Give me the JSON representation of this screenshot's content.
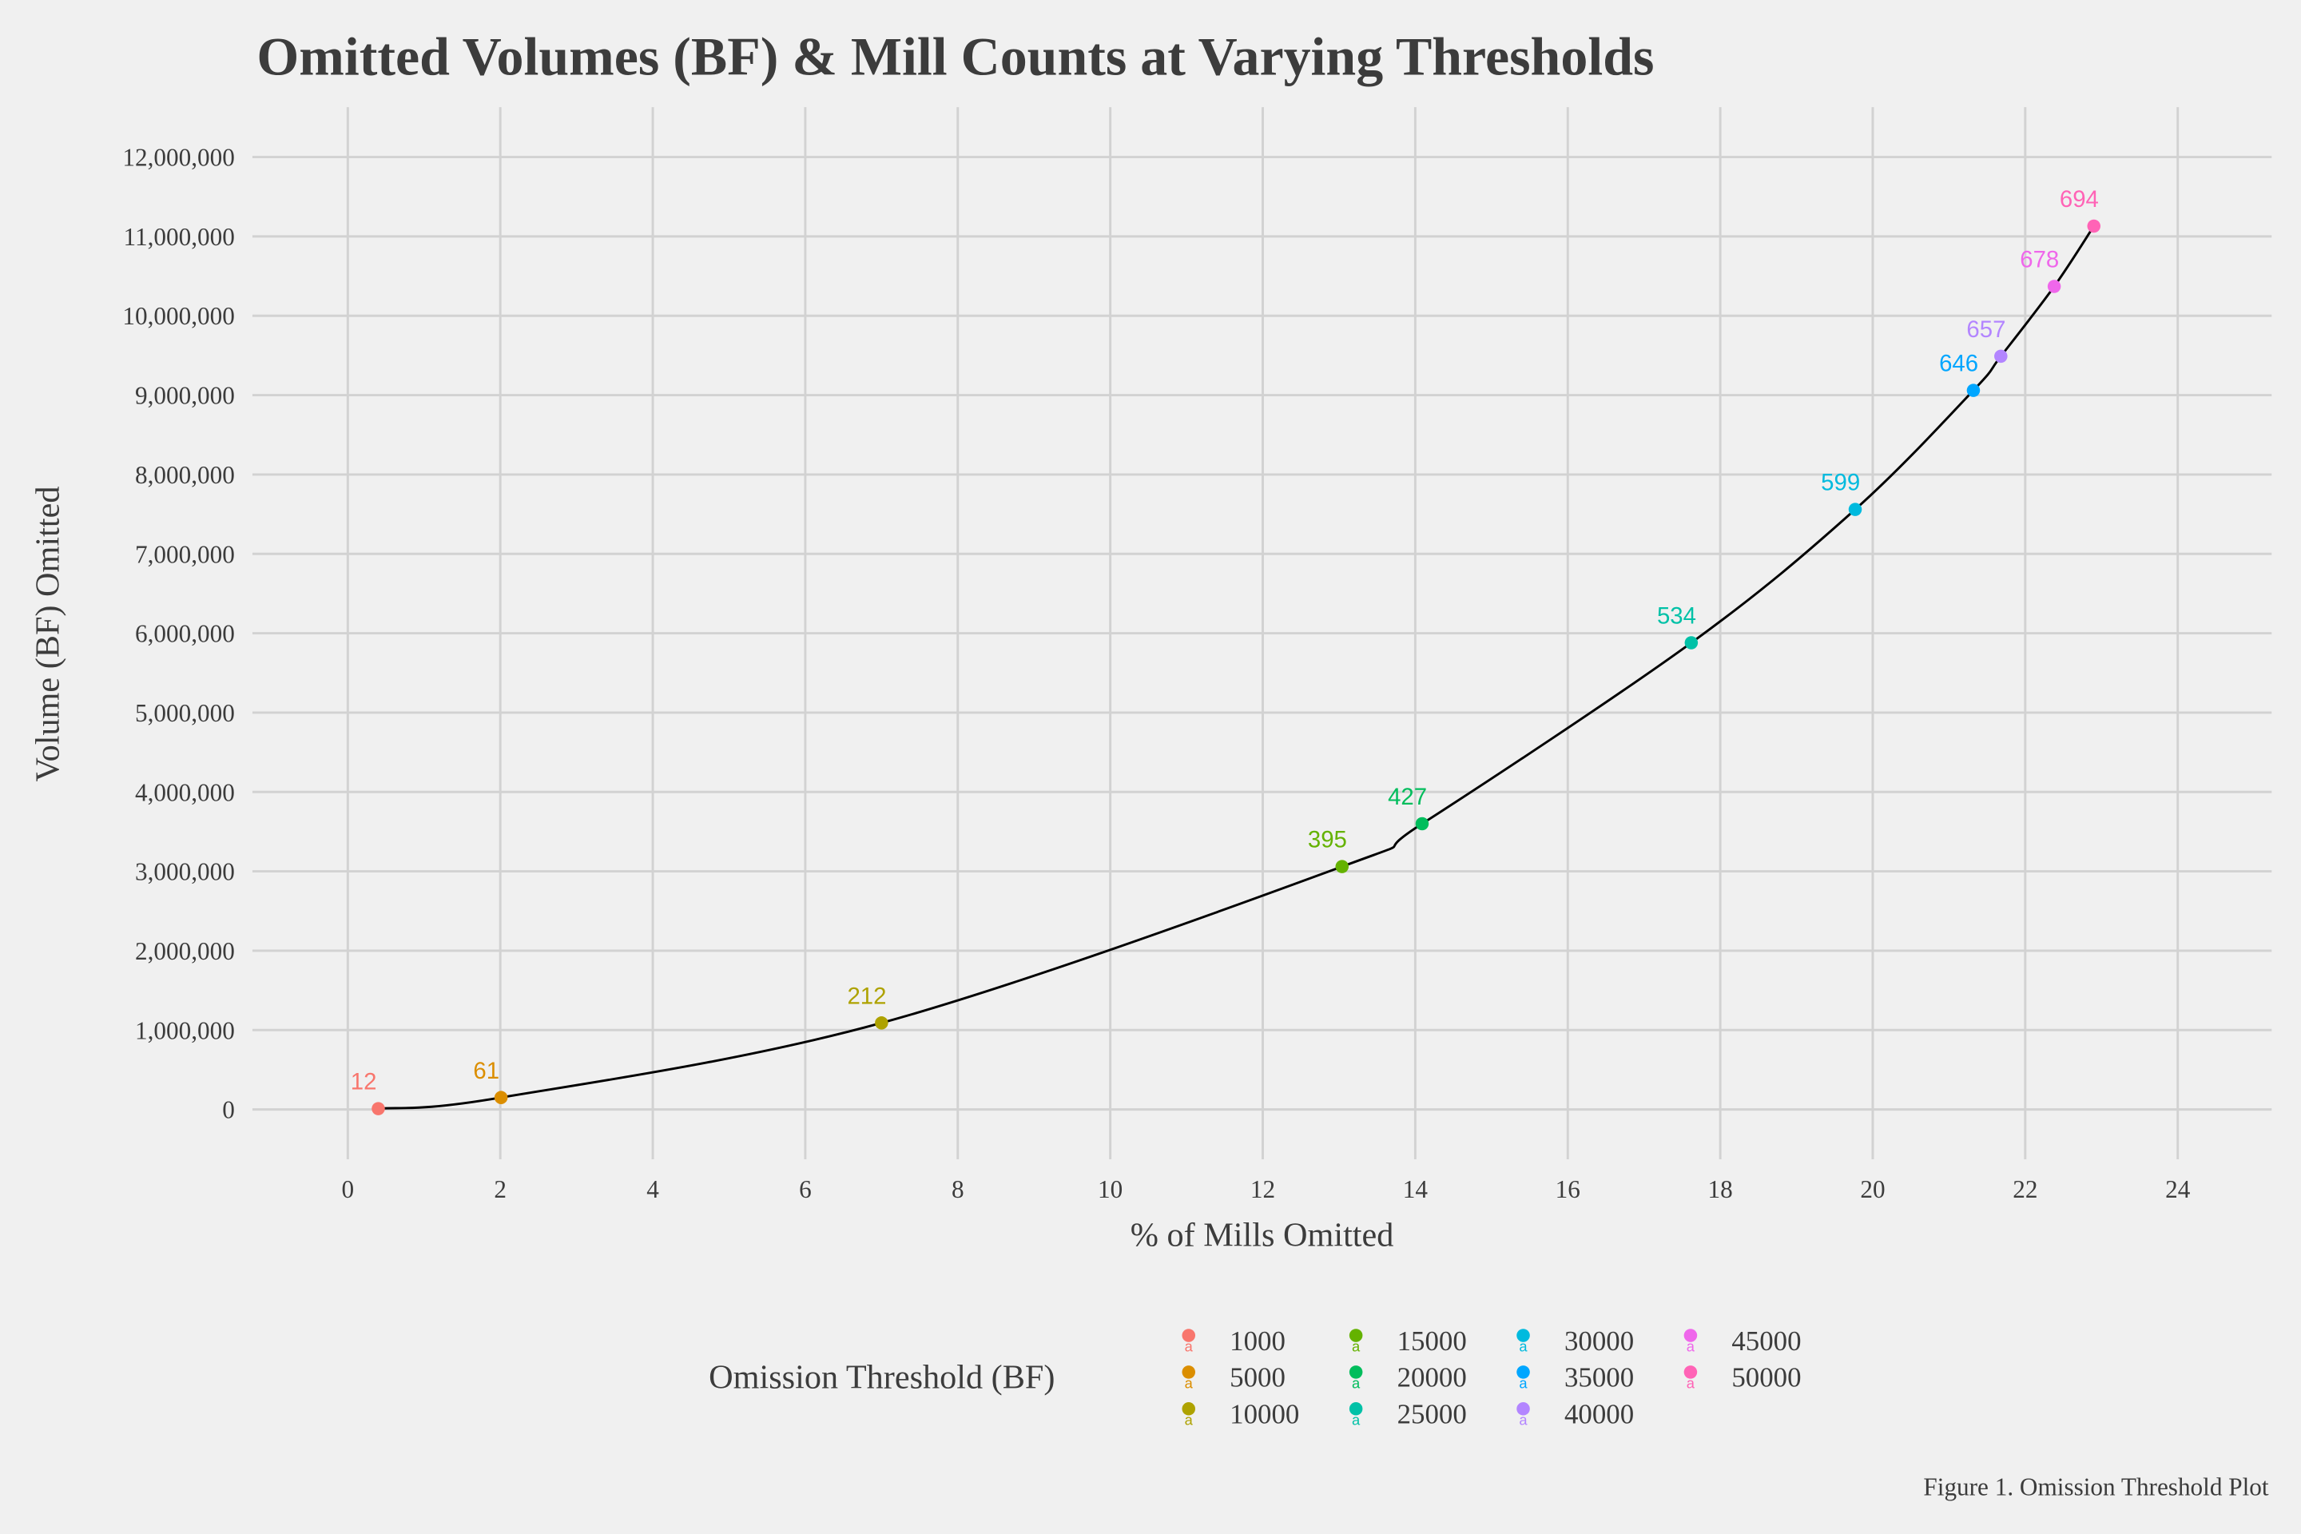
{
  "chart_data": {
    "type": "scatter",
    "title": "Omitted Volumes (BF) & Mill Counts at Varying Thresholds",
    "xlabel": "% of Mills Omitted",
    "ylabel": "Volume (BF) Omitted",
    "caption": "Figure 1. Omission Threshold Plot",
    "xlim": [
      -1,
      25
    ],
    "ylim": [
      -600000,
      12600000
    ],
    "xticks": [
      0,
      2,
      4,
      6,
      8,
      10,
      12,
      14,
      16,
      18,
      20,
      22,
      24
    ],
    "yticks": [
      0,
      1000000,
      2000000,
      3000000,
      4000000,
      5000000,
      6000000,
      7000000,
      8000000,
      9000000,
      10000000,
      11000000,
      12000000
    ],
    "ytick_labels": [
      "0",
      "1,000,000",
      "2,000,000",
      "3,000,000",
      "4,000,000",
      "5,000,000",
      "6,000,000",
      "7,000,000",
      "8,000,000",
      "9,000,000",
      "10,000,000",
      "11,000,000",
      "12,000,000"
    ],
    "grid": true,
    "legend_title": "Omission Threshold (BF)",
    "legend_position": "bottom",
    "series": [
      {
        "name": "1000",
        "color": "#F8766D",
        "x": 0.4,
        "y": 10000,
        "label": "12"
      },
      {
        "name": "5000",
        "color": "#DB8E00",
        "x": 2.01,
        "y": 150000,
        "label": "61"
      },
      {
        "name": "10000",
        "color": "#AEA200",
        "x": 7.0,
        "y": 1090000,
        "label": "212"
      },
      {
        "name": "15000",
        "color": "#64B200",
        "x": 13.04,
        "y": 3060000,
        "label": "395"
      },
      {
        "name": "20000",
        "color": "#00BD5C",
        "x": 14.09,
        "y": 3600000,
        "label": "427"
      },
      {
        "name": "25000",
        "color": "#00C1A7",
        "x": 17.62,
        "y": 5880000,
        "label": "534"
      },
      {
        "name": "30000",
        "color": "#00BADE",
        "x": 19.77,
        "y": 7560000,
        "label": "599"
      },
      {
        "name": "35000",
        "color": "#00A6FF",
        "x": 21.32,
        "y": 9060000,
        "label": "646"
      },
      {
        "name": "40000",
        "color": "#B385FF",
        "x": 21.68,
        "y": 9490000,
        "label": "657"
      },
      {
        "name": "45000",
        "color": "#EF67EB",
        "x": 22.38,
        "y": 10370000,
        "label": "678"
      },
      {
        "name": "50000",
        "color": "#FF63B6",
        "x": 22.9,
        "y": 11130000,
        "label": "694"
      }
    ]
  }
}
